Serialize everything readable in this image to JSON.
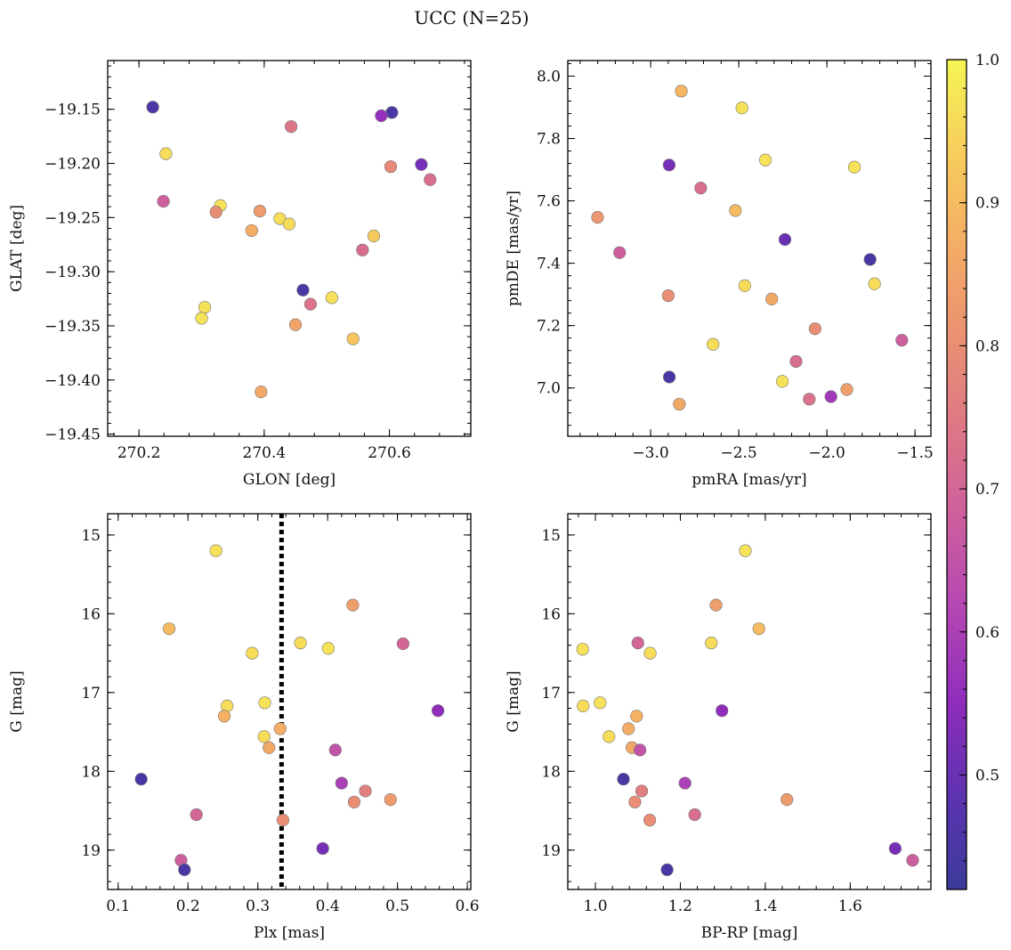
{
  "figure": {
    "title": "UCC (N=25)"
  },
  "colorbar": {
    "range": [
      0.42,
      1.0
    ],
    "ticks": [
      0.5,
      0.6,
      0.7,
      0.8,
      0.9,
      1.0
    ],
    "tick_labels": [
      "0.5",
      "0.6",
      "0.7",
      "0.8",
      "0.9",
      "1.0"
    ],
    "colormap": "plasma",
    "stops": [
      "#3b3b9a",
      "#5c33b0",
      "#8e2cbc",
      "#b346b4",
      "#cc5e9e",
      "#dd7786",
      "#ea9172",
      "#f4ad65",
      "#f7cd5c",
      "#f5f554"
    ]
  },
  "chart_data": [
    {
      "type": "scatter",
      "xlabel": "GLON [deg]",
      "ylabel": "GLAT [deg]",
      "xlim": [
        270.15,
        270.73
      ],
      "ylim": [
        -19.452,
        -19.105
      ],
      "xticks": [
        270.2,
        270.4,
        270.6
      ],
      "xtick_labels": [
        "270.2",
        "270.4",
        "270.6"
      ],
      "yticks": [
        -19.45,
        -19.4,
        -19.35,
        -19.3,
        -19.25,
        -19.2,
        -19.15
      ],
      "ytick_labels": [
        "−19.45",
        "−19.40",
        "−19.35",
        "−19.30",
        "−19.25",
        "−19.20",
        "−19.15"
      ],
      "x": [
        270.222,
        270.243,
        270.239,
        270.604,
        270.587,
        270.651,
        270.443,
        270.602,
        270.665,
        270.33,
        270.323,
        270.393,
        270.425,
        270.44,
        270.38,
        270.575,
        270.557,
        270.462,
        270.508,
        270.474,
        270.305,
        270.3,
        270.45,
        270.542,
        270.395
      ],
      "y": [
        -19.148,
        -19.191,
        -19.235,
        -19.153,
        -19.156,
        -19.201,
        -19.166,
        -19.203,
        -19.215,
        -19.239,
        -19.245,
        -19.244,
        -19.251,
        -19.256,
        -19.262,
        -19.267,
        -19.28,
        -19.317,
        -19.324,
        -19.33,
        -19.333,
        -19.343,
        -19.349,
        -19.362,
        -19.411
      ],
      "c": [
        0.46,
        0.96,
        0.68,
        0.45,
        0.56,
        0.52,
        0.74,
        0.79,
        0.72,
        0.97,
        0.8,
        0.83,
        0.96,
        0.96,
        0.87,
        0.93,
        0.72,
        0.45,
        0.97,
        0.73,
        0.97,
        0.97,
        0.85,
        0.92,
        0.86
      ]
    },
    {
      "type": "scatter",
      "xlabel": "pmRA [mas/yr]",
      "ylabel": "pmDE [mas/yr]",
      "xlim": [
        -3.47,
        -1.41
      ],
      "ylim": [
        6.845,
        8.05
      ],
      "xticks": [
        -3.0,
        -2.5,
        -2.0,
        -1.5
      ],
      "xtick_labels": [
        "−3.0",
        "−2.5",
        "−2.0",
        "−1.5"
      ],
      "yticks": [
        7.0,
        7.2,
        7.4,
        7.6,
        7.8,
        8.0
      ],
      "ytick_labels": [
        "7.0",
        "7.2",
        "7.4",
        "7.6",
        "7.8",
        "8.0"
      ],
      "x": [
        -2.826,
        -2.482,
        -2.349,
        -1.844,
        -2.895,
        -2.716,
        -3.301,
        -2.519,
        -2.238,
        -3.176,
        -1.755,
        -1.73,
        -2.466,
        -2.9,
        -2.313,
        -2.067,
        -1.575,
        -2.646,
        -2.175,
        -2.894,
        -2.253,
        -2.1,
        -1.977,
        -1.887,
        -2.837
      ],
      "y": [
        7.952,
        7.898,
        7.731,
        7.708,
        7.715,
        7.641,
        7.547,
        7.569,
        7.476,
        7.434,
        7.412,
        7.334,
        7.328,
        7.296,
        7.285,
        7.19,
        7.153,
        7.14,
        7.085,
        7.035,
        7.021,
        6.964,
        6.972,
        6.995,
        6.948
      ],
      "c": [
        0.89,
        0.97,
        0.97,
        0.97,
        0.52,
        0.72,
        0.82,
        0.9,
        0.5,
        0.68,
        0.45,
        0.96,
        0.96,
        0.8,
        0.86,
        0.8,
        0.68,
        0.96,
        0.72,
        0.45,
        0.97,
        0.73,
        0.58,
        0.84,
        0.86
      ]
    },
    {
      "type": "scatter",
      "xlabel": "Plx [mas]",
      "ylabel": "G [mag]",
      "xlim": [
        0.085,
        0.605
      ],
      "ylim": [
        19.5,
        14.73
      ],
      "xticks": [
        0.1,
        0.2,
        0.3,
        0.4,
        0.5,
        0.6
      ],
      "xtick_labels": [
        "0.1",
        "0.2",
        "0.3",
        "0.4",
        "0.5",
        "0.6"
      ],
      "yticks": [
        15,
        16,
        17,
        18,
        19
      ],
      "ytick_labels": [
        "15",
        "16",
        "17",
        "18",
        "19"
      ],
      "vline": 0.334,
      "x": [
        0.24,
        0.436,
        0.173,
        0.361,
        0.508,
        0.401,
        0.292,
        0.558,
        0.31,
        0.256,
        0.252,
        0.332,
        0.309,
        0.316,
        0.411,
        0.133,
        0.42,
        0.454,
        0.438,
        0.49,
        0.212,
        0.336,
        0.393,
        0.19,
        0.195
      ],
      "y": [
        15.2,
        15.89,
        16.19,
        16.37,
        16.38,
        16.44,
        16.5,
        17.23,
        17.13,
        17.17,
        17.3,
        17.46,
        17.56,
        17.7,
        17.73,
        18.1,
        18.15,
        18.25,
        18.39,
        18.36,
        18.55,
        18.62,
        18.98,
        19.13,
        19.25
      ],
      "c": [
        0.97,
        0.84,
        0.9,
        0.96,
        0.7,
        0.97,
        0.96,
        0.55,
        0.97,
        0.96,
        0.88,
        0.87,
        0.96,
        0.86,
        0.65,
        0.45,
        0.6,
        0.76,
        0.8,
        0.83,
        0.7,
        0.8,
        0.52,
        0.68,
        0.45
      ]
    },
    {
      "type": "scatter",
      "xlabel": "BP-RP [mag]",
      "ylabel": "G [mag]",
      "xlim": [
        0.935,
        1.79
      ],
      "ylim": [
        19.5,
        14.73
      ],
      "xticks": [
        1.0,
        1.2,
        1.4,
        1.6
      ],
      "xtick_labels": [
        "1.0",
        "1.2",
        "1.4",
        "1.6"
      ],
      "yticks": [
        15,
        16,
        17,
        18,
        19
      ],
      "ytick_labels": [
        "15",
        "16",
        "17",
        "18",
        "19"
      ],
      "x": [
        1.353,
        1.284,
        1.385,
        0.97,
        1.1,
        1.129,
        1.273,
        0.971,
        1.011,
        1.298,
        1.097,
        1.032,
        1.078,
        1.086,
        1.105,
        1.066,
        1.211,
        1.109,
        1.093,
        1.451,
        1.234,
        1.128,
        1.706,
        1.747,
        1.169
      ],
      "y": [
        15.2,
        15.89,
        16.19,
        16.45,
        16.37,
        16.5,
        16.37,
        17.17,
        17.13,
        17.23,
        17.3,
        17.56,
        17.46,
        17.7,
        17.73,
        18.1,
        18.15,
        18.25,
        18.39,
        18.36,
        18.55,
        18.62,
        18.98,
        19.13,
        19.25
      ],
      "c": [
        0.97,
        0.84,
        0.9,
        0.97,
        0.7,
        0.96,
        0.96,
        0.96,
        0.97,
        0.55,
        0.88,
        0.96,
        0.87,
        0.86,
        0.65,
        0.45,
        0.6,
        0.76,
        0.8,
        0.83,
        0.72,
        0.8,
        0.52,
        0.68,
        0.45
      ]
    }
  ]
}
